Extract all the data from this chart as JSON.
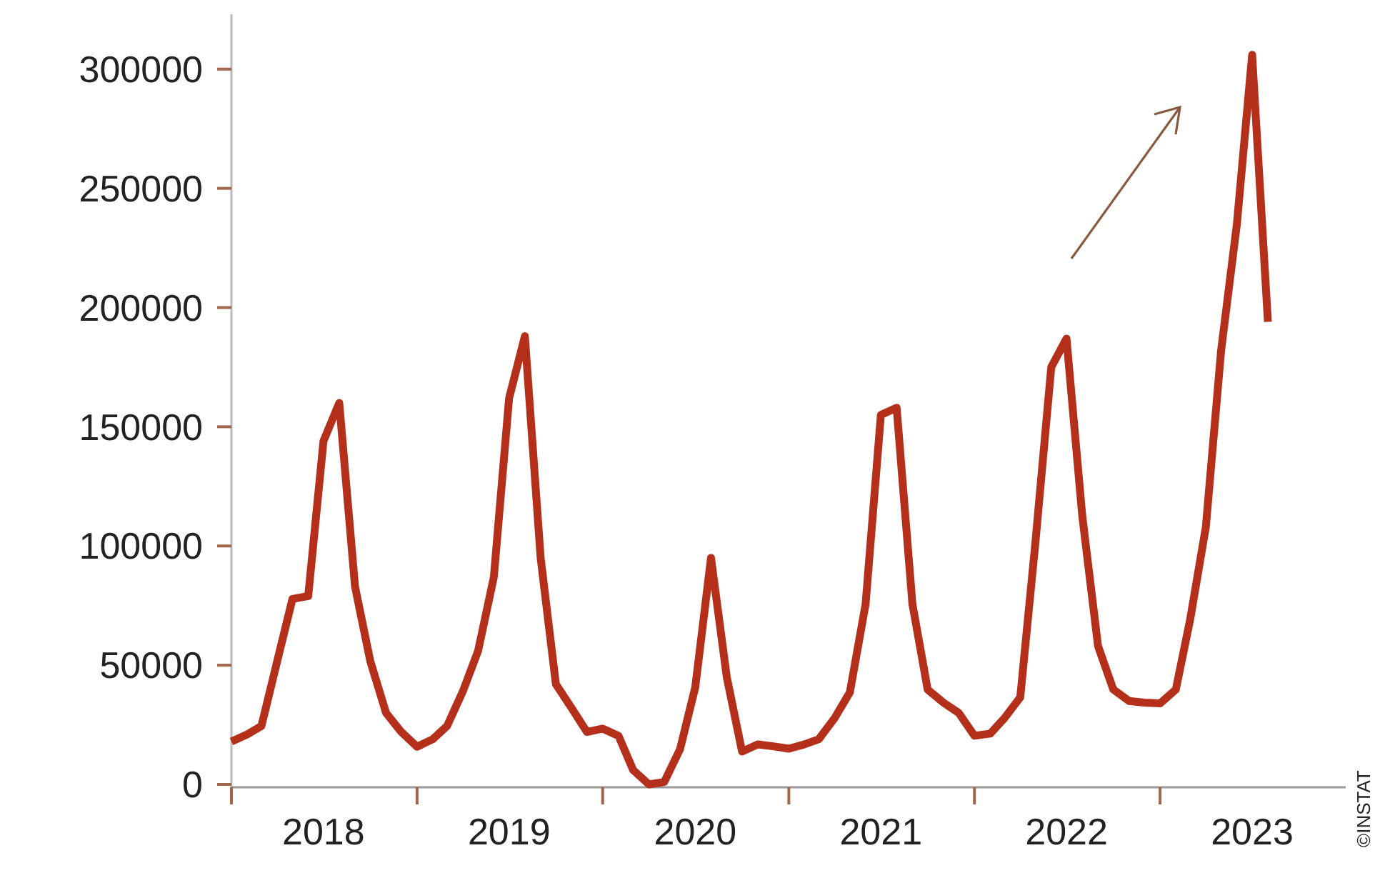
{
  "chart_data": {
    "type": "line",
    "x": [
      "2018-01",
      "2018-02",
      "2018-03",
      "2018-04",
      "2018-05",
      "2018-06",
      "2018-07",
      "2018-08",
      "2018-09",
      "2018-10",
      "2018-11",
      "2018-12",
      "2019-01",
      "2019-02",
      "2019-03",
      "2019-04",
      "2019-05",
      "2019-06",
      "2019-07",
      "2019-08",
      "2019-09",
      "2019-10",
      "2019-11",
      "2019-12",
      "2020-01",
      "2020-02",
      "2020-03",
      "2020-04",
      "2020-05",
      "2020-06",
      "2020-07",
      "2020-08",
      "2020-09",
      "2020-10",
      "2020-11",
      "2020-12",
      "2021-01",
      "2021-02",
      "2021-03",
      "2021-04",
      "2021-05",
      "2021-06",
      "2021-07",
      "2021-08",
      "2021-09",
      "2021-10",
      "2021-11",
      "2021-12",
      "2022-01",
      "2022-02",
      "2022-03",
      "2022-04",
      "2022-05",
      "2022-06",
      "2022-07",
      "2022-08",
      "2022-09",
      "2022-10",
      "2022-11",
      "2022-12",
      "2023-01",
      "2023-02",
      "2023-03",
      "2023-04",
      "2023-05",
      "2023-06",
      "2023-07",
      "2023-08"
    ],
    "series": [
      {
        "color": "#b5301a",
        "values": [
          18000,
          21000,
          24500,
          51700,
          77800,
          79000,
          144000,
          160000,
          83000,
          51700,
          30000,
          22000,
          15800,
          19000,
          24500,
          39000,
          56000,
          87000,
          162000,
          188000,
          95000,
          42000,
          32000,
          22000,
          23400,
          20400,
          6000,
          0,
          1000,
          14700,
          40700,
          95000,
          45000,
          13800,
          16800,
          16000,
          15000,
          16800,
          19000,
          27800,
          38600,
          75700,
          155000,
          158000,
          75700,
          39800,
          34300,
          30000,
          20400,
          21300,
          27800,
          36500,
          101800,
          175000,
          187000,
          112600,
          58000,
          39800,
          35000,
          34300,
          34000,
          39800,
          69000,
          108000,
          182000,
          235000,
          306000,
          194000
        ]
      }
    ],
    "xlim": [
      "2018-01-01",
      "2024-01-01"
    ],
    "xticks": [
      {
        "value": "2018-01-01",
        "label": null
      },
      {
        "value": "2018-07-01",
        "label": "2018"
      },
      {
        "value": "2019-01-01",
        "label": null
      },
      {
        "value": "2019-07-01",
        "label": "2019"
      },
      {
        "value": "2020-01-01",
        "label": null
      },
      {
        "value": "2020-07-01",
        "label": "2020"
      },
      {
        "value": "2021-01-01",
        "label": null
      },
      {
        "value": "2021-07-01",
        "label": "2021"
      },
      {
        "value": "2022-01-01",
        "label": null
      },
      {
        "value": "2022-07-01",
        "label": "2022"
      },
      {
        "value": "2023-01-01",
        "label": null
      },
      {
        "value": "2023-07-01",
        "label": "2023"
      }
    ],
    "ylim": [
      0,
      323000
    ],
    "yticks": [
      0,
      50000,
      100000,
      150000,
      200000,
      250000,
      300000
    ],
    "grid": false,
    "marker": "none",
    "line_style": "solid",
    "annotations": [
      "©INSTAT"
    ]
  }
}
